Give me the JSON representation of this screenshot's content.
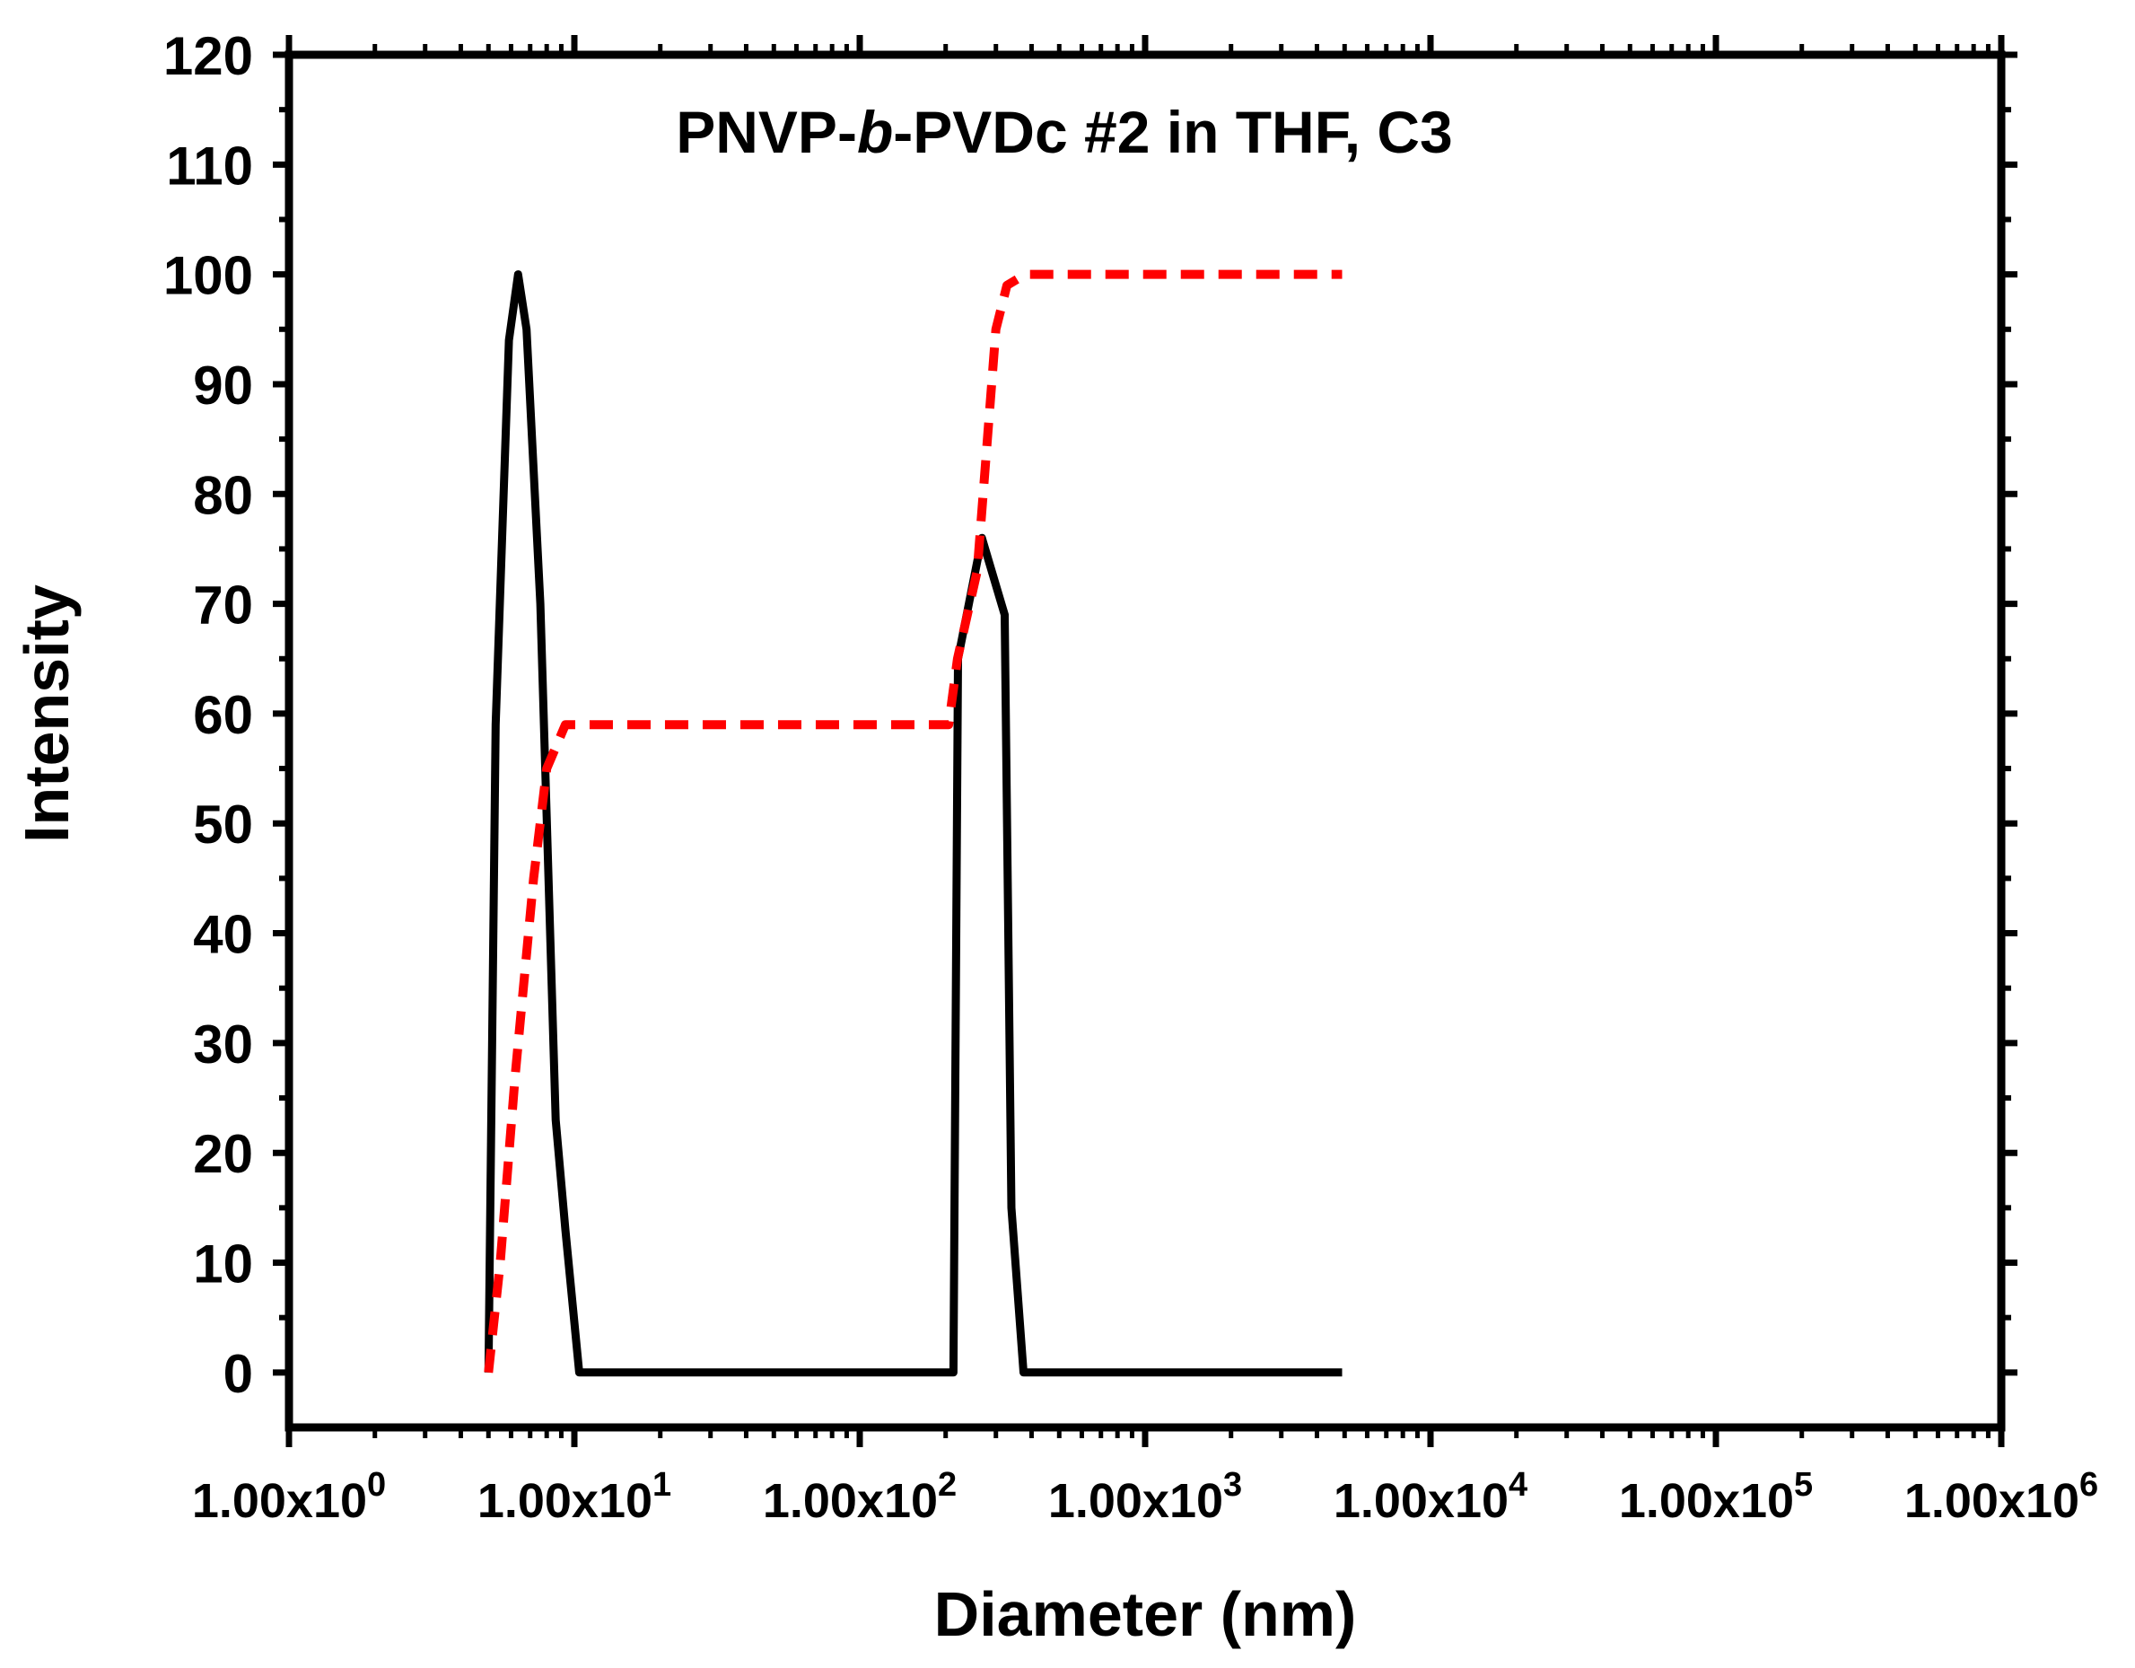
{
  "chart_data": {
    "type": "line",
    "title_pre": "PNVP-",
    "title_italic": "b",
    "title_post": "-PVDc #2 in THF, C3",
    "xlabel": "Diameter (nm)",
    "ylabel": "Intensity",
    "x_scale": "log",
    "xlim": [
      1,
      1000000
    ],
    "ylim": [
      -5,
      120
    ],
    "x_ticks": [
      {
        "value": 1,
        "mantissa": "1.00x10",
        "exp": "0"
      },
      {
        "value": 10,
        "mantissa": "1.00x10",
        "exp": "1"
      },
      {
        "value": 100,
        "mantissa": "1.00x10",
        "exp": "2"
      },
      {
        "value": 1000,
        "mantissa": "1.00x10",
        "exp": "3"
      },
      {
        "value": 10000,
        "mantissa": "1.00x10",
        "exp": "4"
      },
      {
        "value": 100000,
        "mantissa": "1.00x10",
        "exp": "5"
      },
      {
        "value": 1000000,
        "mantissa": "1.00x10",
        "exp": "6"
      }
    ],
    "y_ticks": [
      0,
      10,
      20,
      30,
      40,
      50,
      60,
      70,
      80,
      90,
      100,
      110,
      120
    ],
    "series": [
      {
        "style": "solid",
        "color": "#000000",
        "points": [
          [
            5.0,
            0
          ],
          [
            5.3,
            59
          ],
          [
            5.9,
            94
          ],
          [
            6.35,
            100
          ],
          [
            6.8,
            95
          ],
          [
            7.6,
            70
          ],
          [
            8.6,
            23
          ],
          [
            9.3,
            13
          ],
          [
            10.4,
            0
          ],
          [
            213,
            0
          ],
          [
            221,
            65
          ],
          [
            268,
            76
          ],
          [
            322,
            69
          ],
          [
            340,
            15
          ],
          [
            375,
            0
          ],
          [
            4900,
            0
          ]
        ]
      },
      {
        "style": "dashed",
        "color": "#ff0000",
        "points": [
          [
            5.0,
            0
          ],
          [
            5.5,
            10
          ],
          [
            6.2,
            27
          ],
          [
            7.2,
            45
          ],
          [
            8.0,
            55
          ],
          [
            9.3,
            59
          ],
          [
            10.3,
            59
          ],
          [
            205,
            59
          ],
          [
            220,
            65
          ],
          [
            258,
            73
          ],
          [
            300,
            95
          ],
          [
            328,
            99
          ],
          [
            380,
            100
          ],
          [
            4900,
            100
          ]
        ]
      }
    ]
  }
}
